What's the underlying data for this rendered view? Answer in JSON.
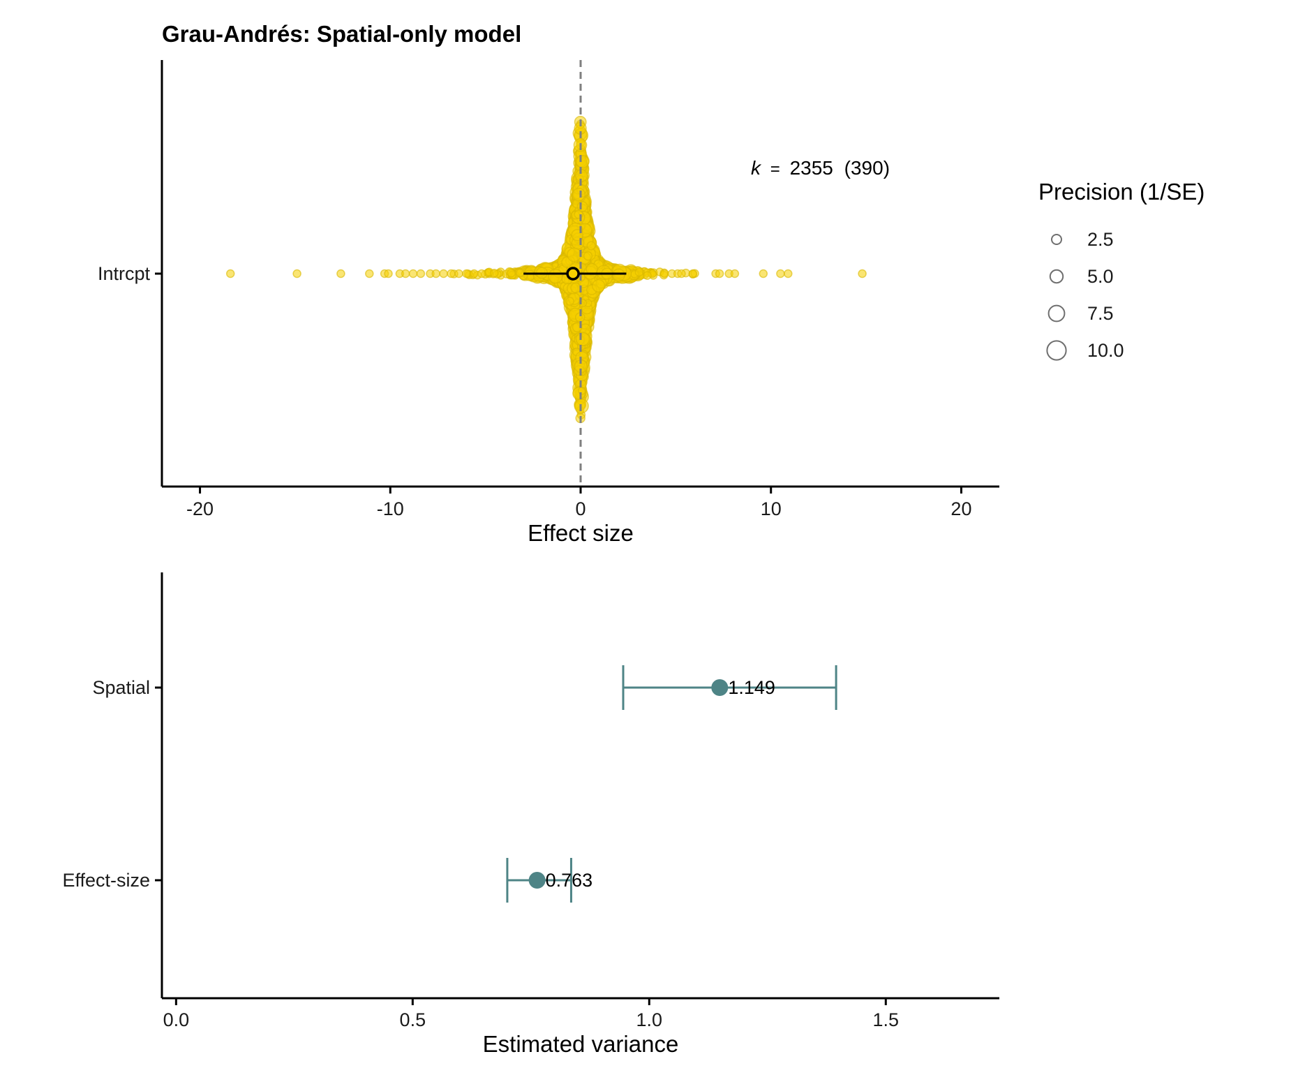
{
  "title": "Grau-Andrés: Spatial-only model",
  "colors": {
    "points": "#F5D000",
    "points_stroke": "#D9B800",
    "estimate": "#000000",
    "variance": "#4E8486",
    "reference_line": "#7f7f7f"
  },
  "chart_data": [
    {
      "type": "scatter",
      "subtype": "orchard-plot",
      "xlabel": "Effect size",
      "ylabel": "",
      "xlim": [
        -22,
        22
      ],
      "x_ticks": [
        -20,
        -10,
        0,
        10,
        20
      ],
      "categories": [
        "Intrcpt"
      ],
      "reference_line_x": 0,
      "estimate": {
        "value": -0.4,
        "ci_low": -3.0,
        "ci_high": 2.4
      },
      "annotation": {
        "k_symbol": "k",
        "equals": "=",
        "k": "2355",
        "groups": "(390)"
      },
      "n_points": 2355,
      "sample_points": [
        -18.4,
        -14.9,
        -12.6,
        -11.1,
        -10.3,
        -10.1,
        -9.5,
        -9.2,
        -8.8,
        -8.4,
        -7.9,
        -7.6,
        -7.2,
        -6.8,
        -6.4,
        -6.0,
        -5.6,
        -5.2,
        4.4,
        4.8,
        5.1,
        5.3,
        5.9,
        7.1,
        7.3,
        7.8,
        8.1,
        9.6,
        10.5,
        10.9,
        14.8
      ],
      "legend": {
        "title": "Precision (1/SE)",
        "entries": [
          "2.5",
          "5.0",
          "7.5",
          "10.0"
        ],
        "values": [
          2.5,
          5.0,
          7.5,
          10.0
        ],
        "placement": "right"
      }
    },
    {
      "type": "scatter",
      "subtype": "point-range",
      "xlabel": "Estimated variance",
      "ylabel": "",
      "xlim": [
        -0.03,
        1.74
      ],
      "x_ticks": [
        "0.0",
        "0.5",
        "1.0",
        "1.5"
      ],
      "x_tick_values": [
        0,
        0.5,
        1.0,
        1.5
      ],
      "categories": [
        "Spatial",
        "Effect-size"
      ],
      "values": [
        1.149,
        0.763
      ],
      "value_labels": [
        "1.149",
        "0.763"
      ],
      "ci_low": [
        0.945,
        0.7
      ],
      "ci_high": [
        1.395,
        0.835
      ]
    }
  ]
}
